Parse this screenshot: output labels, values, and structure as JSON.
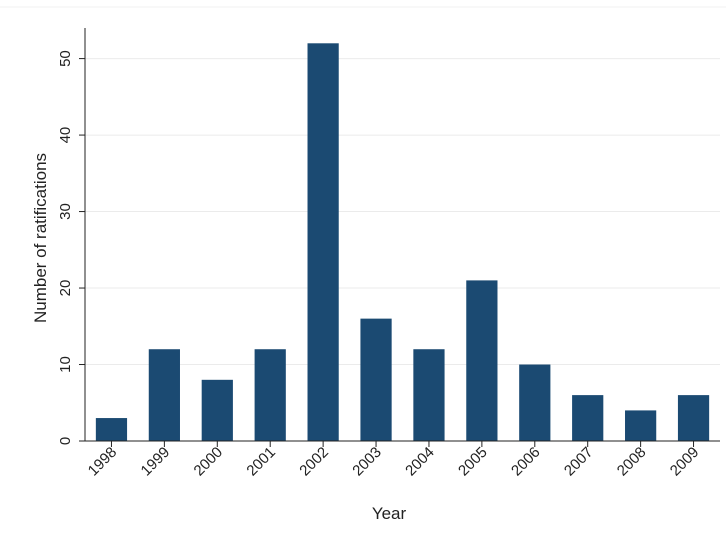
{
  "chart_data": {
    "type": "bar",
    "title": "",
    "xlabel": "Year",
    "ylabel": "Number of ratifications",
    "categories": [
      "1998",
      "1999",
      "2000",
      "2001",
      "2002",
      "2003",
      "2004",
      "2005",
      "2006",
      "2007",
      "2008",
      "2009"
    ],
    "values": [
      3,
      12,
      8,
      12,
      52,
      16,
      12,
      21,
      10,
      6,
      4,
      6
    ],
    "ylim": [
      0,
      54
    ],
    "yticks": [
      0,
      10,
      20,
      30,
      40,
      50
    ],
    "grid": true,
    "legend": "none",
    "colors": {
      "bar": "#1b4a72",
      "grid": "#ebebeb",
      "axis": "#222222"
    }
  }
}
